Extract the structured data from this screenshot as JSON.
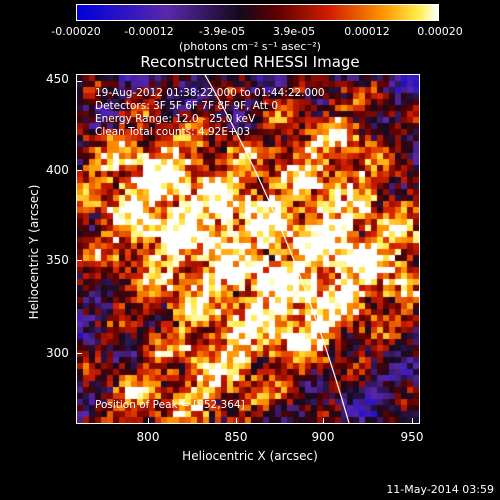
{
  "colorbar": {
    "ticks": [
      "-0.00020",
      "-0.00012",
      "-3.9e-05",
      "3.9e-05",
      "0.00012",
      "0.00020"
    ],
    "units": "(photons cm⁻² s⁻¹ asec⁻²)"
  },
  "title": "Reconstructed RHESSI Image",
  "info": {
    "time_range": "19-Aug-2012 01:38:22.000 to 01:44:22.000",
    "detectors": "Detectors: 3F 5F 6F 7F 8F 9F, Att 0",
    "energy": "Energy Range: 12.0 - 25.0 keV",
    "method": "Clean     Total counts: 4.92E+03",
    "peak": "Position of Peak = [852,364]"
  },
  "axes": {
    "xlabel": "Heliocentric X (arcsec)",
    "ylabel": "Heliocentric Y (arcsec)",
    "xticks": [
      "800",
      "850",
      "900",
      "950"
    ],
    "yticks": [
      "300",
      "350",
      "400",
      "450"
    ]
  },
  "datestamp": "11-May-2014 03:59"
}
